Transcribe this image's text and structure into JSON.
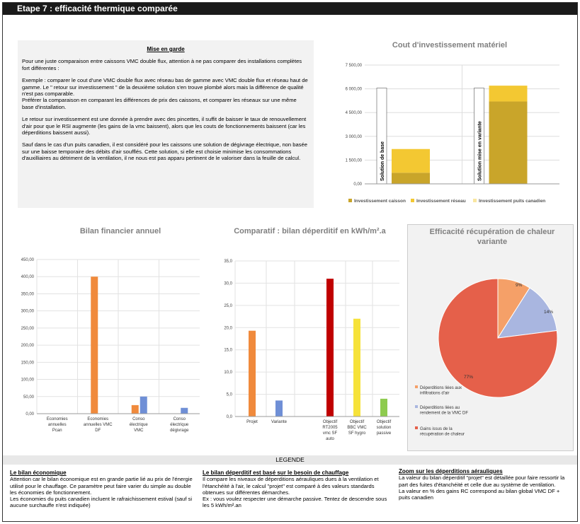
{
  "header": {
    "title": "Etape 7 : efficacité thermique comparée"
  },
  "note": {
    "title": "Mise en garde",
    "paragraphs": [
      "Pour une juste comparaison entre caissons VMC double flux, attention à ne pas comparer des installations complètes fort différentes :",
      "Exemple : comparer le cout d'une VMC double flux avec réseau bas de gamme avec VMC double flux et réseau haut de gamme. Le \" retour sur investissement \" de la deuxième solution s'en trouve plombé alors mais la différence de qualité n'est pas comparable.\nPréférer la comparaison en comparant les différences de prix des caissons, et comparer les réseaux sur une même base d'installation.",
      "Le retour sur investissement est une donnée à prendre avec des pincettes, il suffit de baisser le taux de renouvellement d'air pour que le RSI augmente (les gains de la vmc baissent), alors que les couts de fonctionnements baissent (car les déperditions baissent aussi).",
      "Sauf dans le cas d'un puits canadien, il est considéré pour les caissons une solution de dégivrage électrique, non basée sur une baisse temporaire des débits d'air soufflés. Cette solution, si elle est choisie minimise les consommations d'auxilliaires au détriment de la ventilation, il ne nous est pas apparu pertinent de le valoriser dans la feuille de calcul."
    ]
  },
  "chart_data": [
    {
      "type": "bar",
      "title": "Cout d'investissement matériel",
      "categories": [
        "Solution de base",
        "Solution mise en variante"
      ],
      "stacked": true,
      "series": [
        {
          "name": "Investissement caisson",
          "values": [
            700,
            5200
          ],
          "color": "#c9a52a"
        },
        {
          "name": "Investissement réseau",
          "values": [
            1500,
            1000
          ],
          "color": "#f3c832"
        },
        {
          "name": "Investissement puits canadien",
          "values": [
            0,
            0
          ],
          "color": "#f9e6a0"
        }
      ],
      "ylim": [
        0,
        7500
      ],
      "yticks": [
        "7 500,00",
        "6 000,00",
        "4 500,00",
        "3 000,00",
        "1 500,00",
        "0,00"
      ],
      "legend_position": "bottom"
    },
    {
      "type": "bar",
      "title": "Bilan financier annuel",
      "categories": [
        "Economies annuelles Pcan",
        "Economies annuelles VMC DF",
        "Conso électrique VMC",
        "Conso électrique dégivrage"
      ],
      "series": [
        {
          "values": [
            0,
            400,
            25,
            0
          ],
          "color": "#f08a3c"
        },
        {
          "values": [
            0,
            0,
            50,
            17
          ],
          "color": "#6f8fd6"
        }
      ],
      "ylim": [
        0,
        450
      ],
      "yticks": [
        "450,00",
        "400,00",
        "350,00",
        "300,00",
        "250,00",
        "200,00",
        "150,00",
        "100,00",
        "50,00",
        "0,00"
      ]
    },
    {
      "type": "bar",
      "title": "Comparatif : bilan déperditif en kWh/m².a",
      "categories": [
        "Projet",
        "Variante",
        "Objectif RT2005 vmc SF auto",
        "Objectif BBC VMC SF hygro",
        "Objectif solution passive"
      ],
      "values": [
        19.3,
        3.6,
        31,
        22,
        4
      ],
      "colors": [
        "#f08a3c",
        "#6f8fd6",
        "#c00000",
        "#f6e23a",
        "#8ecb4f"
      ],
      "ylim": [
        0,
        35
      ],
      "yticks": [
        "35,0",
        "30,0",
        "25,0",
        "20,0",
        "15,0",
        "10,0",
        "5,0",
        "0,0"
      ]
    },
    {
      "type": "pie",
      "title": "Efficacité récupération de chaleur variante",
      "slices": [
        {
          "label": "Déperditions liées aux infiltrations d'air",
          "value": 9,
          "text": "9%",
          "color": "#f5a068"
        },
        {
          "label": "Déperditions liées au rendement de la VMC DF",
          "value": 14,
          "text": "14%",
          "color": "#a9b6e0"
        },
        {
          "label": "Gains issus de la récupération de chaleur",
          "value": 77,
          "text": "77%",
          "color": "#e5604a"
        }
      ],
      "legend_position": "bottom"
    }
  ],
  "legend": {
    "title": "LEGENDE",
    "blocks": [
      {
        "title": "Le bilan économique",
        "text": "Attention car le bilan économique est en grande partie lié au prix de l'énergie utilisé pour le chauffage. Ce paramètre peut faire varier du simple au double les économies de fonctionnement.\nLes économies du puits canadien incluent le rafraichissement estival (sauf si aucune surchauffe n'est indiquée)"
      },
      {
        "title": "Le bilan déperditif est basé sur le besoin de chauffage",
        "text": "Il compare les niveaux de déperditions aérauliques dues à la ventilation et l'étanchéité à l'air, le calcul \"projet\" est comparé à des valeurs standards obtenues sur différentes démarches.\nEx : vous voulez respecter une démarche passive. Tentez de descendre sous les 5 kWh/m².an"
      },
      {
        "title": "Zoom sur les déperditions aérauliques",
        "text": "La valeur du bilan déperditif \"projet\" est détaillée pour faire ressortir la part des fuites d'étanchéité et celle due au système de ventilation.\nLa valeur en % des gains RC correspond au bilan global VMC DF + puits canadien"
      }
    ]
  }
}
